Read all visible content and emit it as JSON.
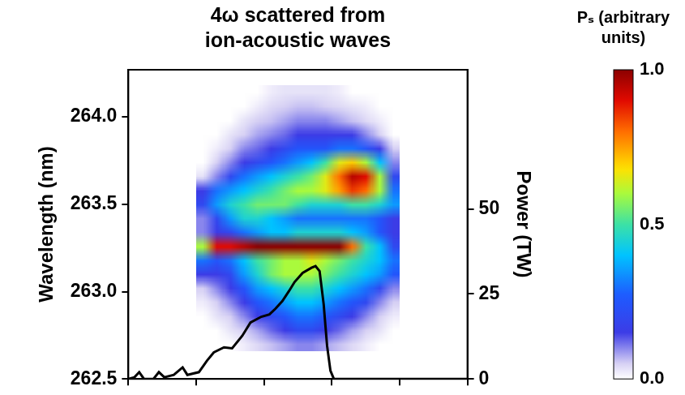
{
  "chart_data": {
    "type": "heatmap",
    "title": "4ω scattered from ion-acoustic waves",
    "y_label": "Wavelength (nm)",
    "y2_label": "Power (TW)",
    "xlim": [
      0,
      5
    ],
    "xticks": [
      0,
      1,
      2,
      3,
      4,
      5
    ],
    "ylim": [
      262.5,
      264.27
    ],
    "yticks": [
      262.5,
      {
        "value": 263,
        "label": "263.0"
      },
      263.5,
      {
        "value": 264,
        "label": "264.0"
      }
    ],
    "y2lim": [
      0,
      91
    ],
    "y2ticks": [
      0,
      25,
      50
    ],
    "grid": false,
    "tick_labels": "y",
    "heatmap": {
      "x": [
        1.1,
        1.3,
        1.5,
        1.7,
        1.9,
        2.1,
        2.3,
        2.5,
        2.7,
        2.9,
        3.1,
        3.3,
        3.5,
        3.7,
        3.9
      ],
      "y": [
        262.7,
        262.78,
        262.86,
        262.94,
        263.02,
        263.1,
        263.18,
        263.26,
        263.34,
        263.42,
        263.5,
        263.58,
        263.66,
        263.74,
        263.82,
        263.9,
        263.98,
        264.06,
        264.14
      ],
      "z": [
        [
          0,
          0,
          0,
          0.02,
          0.04,
          0.06,
          0.08,
          0.1,
          0.1,
          0.08,
          0.06,
          0.04,
          0.02,
          0,
          0
        ],
        [
          0,
          0,
          0.03,
          0.05,
          0.08,
          0.12,
          0.15,
          0.2,
          0.2,
          0.15,
          0.12,
          0.08,
          0.05,
          0.03,
          0
        ],
        [
          0,
          0.03,
          0.05,
          0.1,
          0.15,
          0.2,
          0.25,
          0.3,
          0.3,
          0.25,
          0.2,
          0.15,
          0.1,
          0.05,
          0.02
        ],
        [
          0.02,
          0.05,
          0.1,
          0.15,
          0.25,
          0.3,
          0.35,
          0.4,
          0.4,
          0.35,
          0.3,
          0.25,
          0.2,
          0.1,
          0.05
        ],
        [
          0.05,
          0.1,
          0.15,
          0.25,
          0.35,
          0.4,
          0.45,
          0.5,
          0.5,
          0.45,
          0.4,
          0.35,
          0.3,
          0.2,
          0.1
        ],
        [
          0.15,
          0.15,
          0.2,
          0.35,
          0.45,
          0.55,
          0.6,
          0.6,
          0.6,
          0.55,
          0.5,
          0.45,
          0.4,
          0.35,
          0.25
        ],
        [
          0.3,
          0.25,
          0.3,
          0.4,
          0.5,
          0.55,
          0.6,
          0.6,
          0.65,
          0.6,
          0.55,
          0.5,
          0.45,
          0.4,
          0.3
        ],
        [
          0.6,
          0.9,
          0.9,
          0.95,
          1,
          1,
          1,
          1,
          1,
          1,
          1,
          0.8,
          0.5,
          0.4,
          0.2
        ],
        [
          0.1,
          0.15,
          0.2,
          0.3,
          0.35,
          0.4,
          0.4,
          0.45,
          0.45,
          0.45,
          0.45,
          0.4,
          0.35,
          0.25,
          0.15
        ],
        [
          0.1,
          0.2,
          0.35,
          0.45,
          0.45,
          0.4,
          0.35,
          0.3,
          0.3,
          0.3,
          0.3,
          0.3,
          0.3,
          0.25,
          0.15
        ],
        [
          0.2,
          0.35,
          0.45,
          0.5,
          0.55,
          0.55,
          0.55,
          0.5,
          0.45,
          0.45,
          0.45,
          0.5,
          0.5,
          0.45,
          0.35
        ],
        [
          0.15,
          0.3,
          0.35,
          0.4,
          0.45,
          0.5,
          0.55,
          0.6,
          0.6,
          0.65,
          0.75,
          0.85,
          0.8,
          0.6,
          0.3
        ],
        [
          0.03,
          0.1,
          0.2,
          0.3,
          0.35,
          0.4,
          0.45,
          0.5,
          0.55,
          0.65,
          0.8,
          0.95,
          0.9,
          0.6,
          0.2
        ],
        [
          0,
          0.05,
          0.1,
          0.15,
          0.2,
          0.25,
          0.3,
          0.35,
          0.4,
          0.5,
          0.65,
          0.7,
          0.6,
          0.4,
          0.1
        ],
        [
          0,
          0.02,
          0.05,
          0.1,
          0.12,
          0.15,
          0.2,
          0.25,
          0.25,
          0.25,
          0.3,
          0.3,
          0.25,
          0.15,
          0.05
        ],
        [
          0,
          0,
          0.03,
          0.05,
          0.08,
          0.1,
          0.12,
          0.15,
          0.15,
          0.15,
          0.15,
          0.15,
          0.1,
          0.05,
          0
        ],
        [
          0,
          0,
          0,
          0.03,
          0.05,
          0.06,
          0.08,
          0.1,
          0.1,
          0.1,
          0.08,
          0.06,
          0.04,
          0.02,
          0
        ],
        [
          0,
          0,
          0,
          0,
          0.02,
          0.04,
          0.05,
          0.06,
          0.06,
          0.05,
          0.04,
          0.03,
          0.02,
          0,
          0
        ],
        [
          0,
          0,
          0,
          0,
          0,
          0.02,
          0.03,
          0.03,
          0.03,
          0.03,
          0.02,
          0,
          0,
          0,
          0
        ]
      ]
    },
    "colorbar": {
      "label": "Pₛ (arbitrary units)",
      "range": [
        0,
        1
      ],
      "ticks": [
        {
          "value": 0,
          "label": "0.0"
        },
        0.5,
        {
          "value": 1,
          "label": "1.0"
        }
      ]
    },
    "series": [
      {
        "type": "line",
        "axis": "y2",
        "color": "#000000",
        "x": [
          0,
          0.09,
          0.16,
          0.23,
          0.37,
          0.45,
          0.53,
          0.67,
          0.8,
          0.87,
          1.04,
          1.16,
          1.26,
          1.41,
          1.53,
          1.68,
          1.8,
          1.96,
          2.08,
          2.17,
          2.27,
          2.37,
          2.45,
          2.57,
          2.7,
          2.76,
          2.82,
          2.88,
          2.93,
          2.98,
          3.03,
          5
        ],
        "values": [
          0,
          0.5,
          2,
          0,
          0,
          2,
          0.5,
          1.2,
          3.4,
          1.2,
          2,
          5.4,
          7.8,
          9.3,
          9,
          12.7,
          16.6,
          18.3,
          19,
          20.7,
          22.9,
          25.9,
          28.5,
          31.2,
          32.7,
          33.2,
          31.7,
          22,
          9.8,
          2.4,
          0,
          0
        ]
      }
    ]
  }
}
